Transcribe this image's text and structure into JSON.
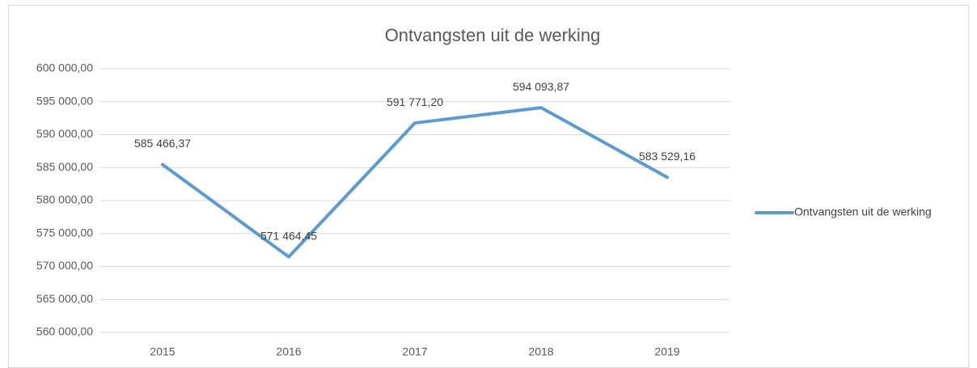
{
  "chart_data": {
    "type": "line",
    "title": "Ontvangsten uit de werking",
    "categories": [
      "2015",
      "2016",
      "2017",
      "2018",
      "2019"
    ],
    "series": [
      {
        "name": "Ontvangsten uit de werking",
        "color": "#5b9bd5",
        "values": [
          585466.37,
          571464.45,
          591771.2,
          594093.87,
          583529.16
        ],
        "value_labels": [
          "585 466,37",
          "571 464,45",
          "591 771,20",
          "594 093,87",
          "583 529,16"
        ]
      }
    ],
    "ylim": [
      560000,
      600000
    ],
    "yticks": [
      {
        "value": 560000,
        "label": "560 000,00"
      },
      {
        "value": 565000,
        "label": "565 000,00"
      },
      {
        "value": 570000,
        "label": "570 000,00"
      },
      {
        "value": 575000,
        "label": "575 000,00"
      },
      {
        "value": 580000,
        "label": "580 000,00"
      },
      {
        "value": 585000,
        "label": "585 000,00"
      },
      {
        "value": 590000,
        "label": "590 000,00"
      },
      {
        "value": 595000,
        "label": "595 000,00"
      },
      {
        "value": 600000,
        "label": "600 000,00"
      }
    ],
    "grid": true,
    "legend": "right"
  }
}
